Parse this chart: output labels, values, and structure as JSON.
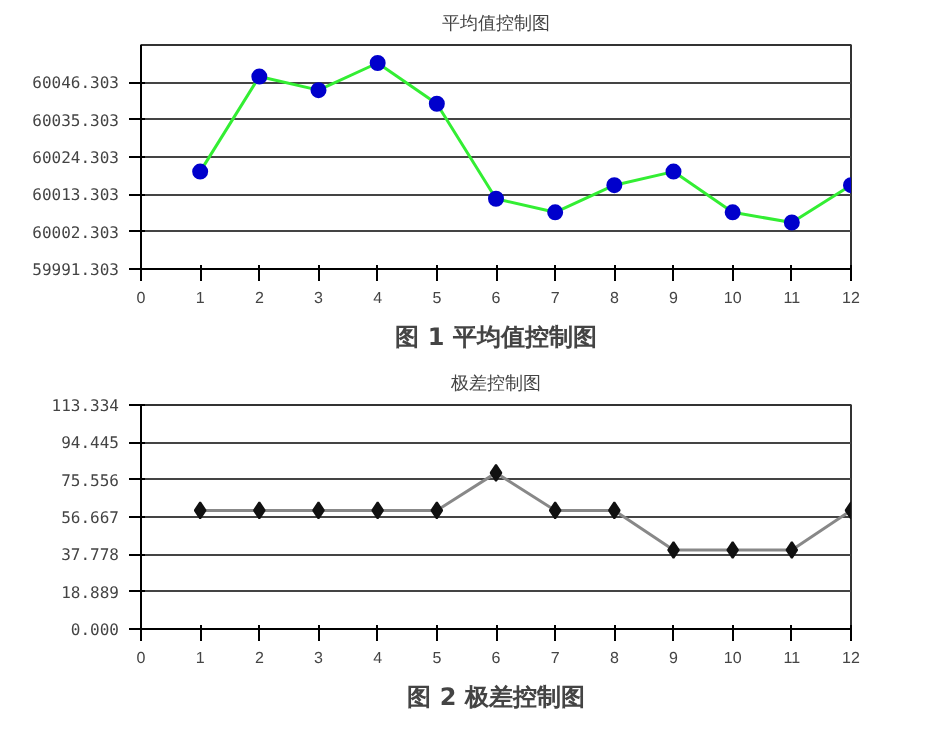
{
  "chart_data": [
    {
      "type": "line",
      "title": "平均值控制图",
      "annotations": [
        "图 1 平均值控制图"
      ],
      "x": [
        1,
        2,
        3,
        4,
        5,
        6,
        7,
        8,
        9,
        10,
        11,
        12
      ],
      "series": [
        {
          "color": "#33ee33",
          "colors": [
            "#0000cc",
            "#0000cc",
            "#0000cc",
            "#0000cc",
            "#0000cc",
            "#0000cc",
            "#0000cc",
            "#0000cc",
            "#0000cc",
            "#0000cc",
            "#0000cc",
            "#0000cc"
          ],
          "values": [
            60020,
            60048,
            60044,
            60052,
            60040,
            60012,
            60008,
            60016,
            60020,
            60008,
            60005,
            60016
          ]
        }
      ],
      "xlim": [
        0,
        12
      ],
      "xticks": [
        0,
        1,
        2,
        3,
        4,
        5,
        6,
        7,
        8,
        9,
        10,
        11,
        12
      ],
      "ylim": [
        59991.303,
        60057.303
      ],
      "yticks": [
        59991.303,
        60002.303,
        60013.303,
        60024.303,
        60035.303,
        60046.303
      ],
      "grid": "y",
      "marker": "circle"
    },
    {
      "type": "line",
      "title": "极差控制图",
      "annotations": [
        "图 2 极差控制图"
      ],
      "x": [
        1,
        2,
        3,
        4,
        5,
        6,
        7,
        8,
        9,
        10,
        11,
        12
      ],
      "series": [
        {
          "color": "#888888",
          "colors": [
            "#111111",
            "#111111",
            "#111111",
            "#111111",
            "#111111",
            "#111111",
            "#111111",
            "#111111",
            "#111111",
            "#111111",
            "#111111",
            "#111111"
          ],
          "values": [
            60,
            60,
            60,
            60,
            60,
            79,
            60,
            60,
            40,
            40,
            40,
            60
          ]
        }
      ],
      "xlim": [
        0,
        12
      ],
      "xticks": [
        0,
        1,
        2,
        3,
        4,
        5,
        6,
        7,
        8,
        9,
        10,
        11,
        12
      ],
      "ylim": [
        0,
        113.334
      ],
      "yticks": [
        {
          "value": 0,
          "label": "0.000"
        },
        18.889,
        37.778,
        56.667,
        75.556,
        94.445,
        113.334
      ],
      "grid": "y",
      "marker": "diamond"
    }
  ]
}
